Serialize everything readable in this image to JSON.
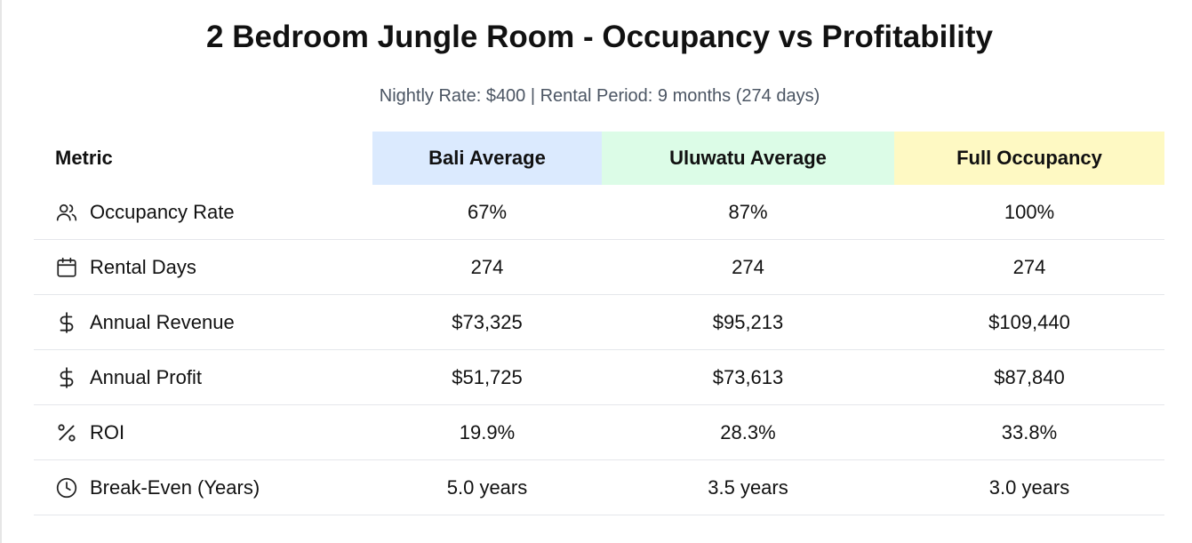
{
  "header": {
    "title": "2 Bedroom Jungle Room - Occupancy vs Profitability",
    "subtitle": "Nightly Rate: $400 | Rental Period: 9 months (274 days)"
  },
  "table": {
    "columns": [
      "Metric",
      "Bali Average",
      "Uluwatu Average",
      "Full Occupancy"
    ],
    "column_colors": [
      "#ffffff",
      "#dbeafe",
      "#dcfce7",
      "#fef9c3"
    ],
    "rows": [
      {
        "icon": "users-icon",
        "label": "Occupancy Rate",
        "values": [
          "67%",
          "87%",
          "100%"
        ]
      },
      {
        "icon": "calendar-icon",
        "label": "Rental Days",
        "values": [
          "274",
          "274",
          "274"
        ]
      },
      {
        "icon": "dollar-icon",
        "label": "Annual Revenue",
        "values": [
          "$73,325",
          "$95,213",
          "$109,440"
        ]
      },
      {
        "icon": "dollar-icon",
        "label": "Annual Profit",
        "values": [
          "$51,725",
          "$73,613",
          "$87,840"
        ]
      },
      {
        "icon": "percent-icon",
        "label": "ROI",
        "values": [
          "19.9%",
          "28.3%",
          "33.8%"
        ]
      },
      {
        "icon": "clock-icon",
        "label": "Break-Even (Years)",
        "values": [
          "5.0 years",
          "3.5 years",
          "3.0 years"
        ]
      }
    ]
  }
}
